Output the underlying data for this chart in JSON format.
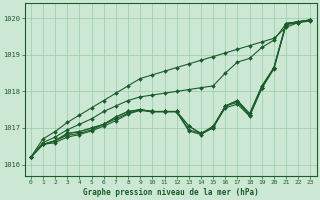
{
  "background_color": "#cce8d4",
  "grid_color": "#99ccaa",
  "line_color": "#1a5c2a",
  "marker_color": "#1a5c2a",
  "xlabel": "Graphe pression niveau de la mer (hPa)",
  "ylim": [
    1015.7,
    1020.4
  ],
  "xlim": [
    -0.5,
    23.5
  ],
  "yticks": [
    1016,
    1017,
    1018,
    1019,
    1020
  ],
  "xticks": [
    0,
    1,
    2,
    3,
    4,
    5,
    6,
    7,
    8,
    9,
    10,
    11,
    12,
    13,
    14,
    15,
    16,
    17,
    18,
    19,
    20,
    21,
    22,
    23
  ],
  "series": [
    [
      1016.2,
      1016.55,
      1016.65,
      1016.85,
      1016.9,
      1017.0,
      1017.1,
      1017.3,
      1017.45,
      1017.5,
      1017.45,
      1017.45,
      1017.45,
      1017.05,
      1016.85,
      1017.0,
      1017.6,
      1017.75,
      1017.4,
      1018.15,
      1018.65,
      1019.85,
      1019.9,
      1019.95
    ],
    [
      1016.2,
      1016.55,
      1016.65,
      1016.85,
      1016.9,
      1017.0,
      1017.1,
      1017.3,
      1017.45,
      1017.5,
      1017.45,
      1017.45,
      1017.45,
      1017.05,
      1016.85,
      1017.0,
      1017.6,
      1017.75,
      1017.35,
      1018.1,
      1018.65,
      1019.85,
      1019.9,
      1019.95
    ],
    [
      1016.2,
      1016.55,
      1016.65,
      1016.8,
      1016.85,
      1016.95,
      1017.1,
      1017.25,
      1017.4,
      1017.5,
      1017.45,
      1017.45,
      1017.45,
      1016.95,
      1016.85,
      1017.05,
      1017.6,
      1017.7,
      1017.35,
      1018.1,
      1018.65,
      1019.85,
      1019.9,
      1019.95
    ],
    [
      1016.2,
      1016.55,
      1016.6,
      1016.75,
      1016.82,
      1016.92,
      1017.05,
      1017.2,
      1017.38,
      1017.48,
      1017.44,
      1017.44,
      1017.44,
      1016.92,
      1016.82,
      1017.02,
      1017.55,
      1017.65,
      1017.32,
      1018.08,
      1018.62,
      1019.82,
      1019.88,
      1019.92
    ],
    [
      1016.2,
      1016.6,
      1016.75,
      1016.95,
      1017.1,
      1017.25,
      1017.45,
      1017.6,
      1017.75,
      1017.85,
      1017.9,
      1017.95,
      1018.0,
      1018.05,
      1018.1,
      1018.15,
      1018.5,
      1018.8,
      1018.9,
      1019.2,
      1019.4,
      1019.85,
      1019.9,
      1019.95
    ],
    [
      1016.2,
      1016.7,
      1016.9,
      1017.15,
      1017.35,
      1017.55,
      1017.75,
      1017.95,
      1018.15,
      1018.35,
      1018.45,
      1018.55,
      1018.65,
      1018.75,
      1018.85,
      1018.95,
      1019.05,
      1019.15,
      1019.25,
      1019.35,
      1019.45,
      1019.75,
      1019.88,
      1019.95
    ]
  ]
}
